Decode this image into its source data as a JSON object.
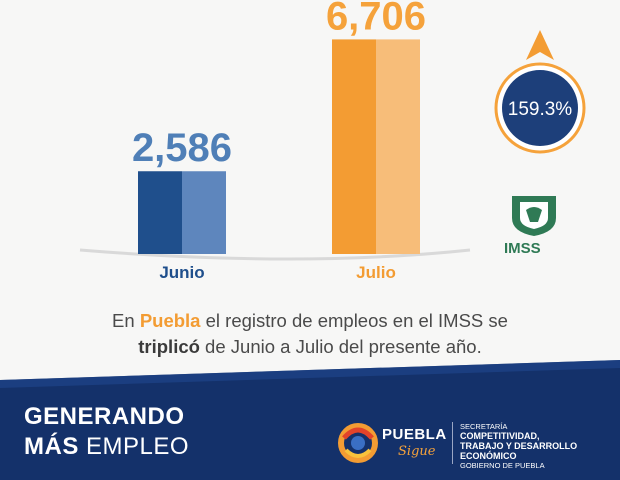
{
  "chart_data": {
    "type": "bar",
    "categories": [
      "Junio",
      "Julio"
    ],
    "values": [
      2586,
      6706
    ],
    "value_labels": [
      "2,586",
      "6,706"
    ],
    "bar_colors": [
      "#1f4f8c",
      "#f39c33"
    ],
    "bar_colors_light": [
      "#5e86bd",
      "#f7bd79"
    ],
    "label_colors": [
      "#4f7fb7",
      "#f5a23b"
    ],
    "title": "",
    "xlabel": "",
    "ylabel": "",
    "ylim": [
      0,
      7000
    ],
    "grid": false,
    "legend": "none"
  },
  "badge": {
    "text": "159.3%",
    "arrow_color": "#f39c33",
    "ring_color": "#f5a23b",
    "fill_color": "#1d3f7a"
  },
  "caption": {
    "pre": "En ",
    "highlight": "Puebla",
    "mid": " el registro de empleos en el IMSS se",
    "bold": "triplicó",
    "post": " de Junio a Julio del presente año."
  },
  "footer": {
    "slogan_line1": "GENERANDO",
    "slogan_line2_bold": "MÁS",
    "slogan_line2_rest": " EMPLEO",
    "brand_name": "PUEBLA",
    "brand_tagline": "Sigue",
    "dept_line1": "SECRETARÍA",
    "dept_line2": "COMPETITIVIDAD,",
    "dept_line3": "TRABAJO Y DESARROLLO",
    "dept_line4": "ECONÓMICO",
    "dept_line5": "GOBIERNO DE PUEBLA",
    "band_color": "#14316a"
  },
  "imss": {
    "label": "IMSS",
    "icon": "imss-eagle-logo-icon"
  }
}
